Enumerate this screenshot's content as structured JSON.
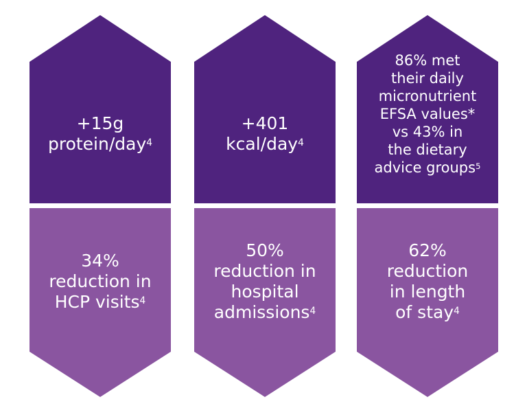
{
  "colors": {
    "top": "#4f237e",
    "bottom": "#8a55a0",
    "text": "#ffffff"
  },
  "columns": [
    {
      "top": {
        "lines": [
          "+15g",
          "protein/day"
        ],
        "ref": "4"
      },
      "bottom": {
        "lines": [
          "34%",
          "reduction in",
          "HCP visits"
        ],
        "ref": "4"
      }
    },
    {
      "top": {
        "lines": [
          "+401",
          "kcal/day"
        ],
        "ref": "4"
      },
      "bottom": {
        "lines": [
          "50%",
          "reduction in",
          "hospital",
          "admissions"
        ],
        "ref": "4"
      }
    },
    {
      "top": {
        "lines": [
          "86% met",
          "their daily",
          "micronutrient",
          "EFSA values*",
          "vs 43% in",
          "the dietary",
          "advice groups"
        ],
        "ref": "5"
      },
      "bottom": {
        "lines": [
          "62%",
          "reduction",
          "in length",
          "of stay"
        ],
        "ref": "4"
      }
    }
  ]
}
